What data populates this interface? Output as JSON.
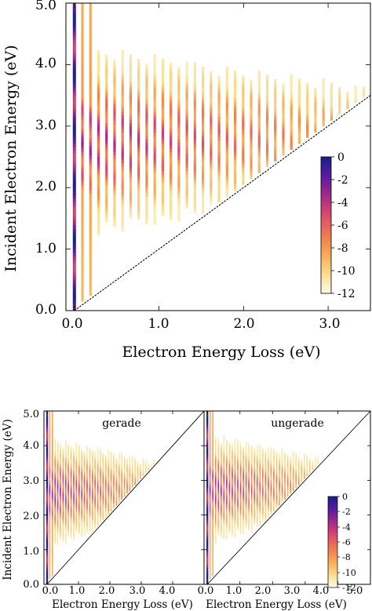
{
  "chart_data": [
    {
      "type": "heatmap",
      "title": "",
      "xlabel": "Electron Energy Loss (eV)",
      "ylabel": "Incident Electron Energy (eV)",
      "xlim": [
        -0.1,
        3.5
      ],
      "ylim": [
        0.0,
        5.0
      ],
      "x_ticks": [
        "0.0",
        "1.0",
        "2.0",
        "3.0"
      ],
      "x_tick_values": [
        0,
        1,
        2,
        3
      ],
      "y_ticks": [
        "0.0",
        "1.0",
        "2.0",
        "3.0",
        "4.0",
        "5.0"
      ],
      "y_tick_values": [
        0,
        1,
        2,
        3,
        4,
        5
      ],
      "threshold_line": "y = x",
      "band_center_energy": 2.7,
      "line_spacing": 0.095,
      "colorbar": {
        "range": [
          -12,
          0
        ],
        "ticks": [
          "0",
          "-2",
          "-4",
          "-6",
          "-8",
          "-10",
          "-12"
        ],
        "tick_values": [
          0,
          -2,
          -4,
          -6,
          -8,
          -10,
          -12
        ],
        "colors": [
          "#fdfbe8",
          "#f9dc8c",
          "#f6a957",
          "#ee7a4f",
          "#dc4a6c",
          "#a42a8a",
          "#5a1ca0",
          "#1a1f8c"
        ]
      }
    },
    {
      "type": "heatmap",
      "title": "gerade",
      "xlabel": "Electron Energy Loss (eV)",
      "ylabel": "Incident Electron Energy (eV)",
      "xlim": [
        -0.1,
        5.0
      ],
      "ylim": [
        0.0,
        5.0
      ],
      "x_ticks": [
        "0.0",
        "1.0",
        "2.0",
        "3.0",
        "4.0",
        "5.0"
      ],
      "x_tick_values": [
        0,
        1,
        2,
        3,
        4,
        5
      ],
      "y_ticks": [
        "0.0",
        "1.0",
        "2.0",
        "3.0",
        "4.0",
        "5.0"
      ],
      "y_tick_values": [
        0,
        1,
        2,
        3,
        4,
        5
      ],
      "threshold_line": "y = x",
      "band_center_energy": 2.6,
      "line_spacing": 0.085
    },
    {
      "type": "heatmap",
      "title": "ungerade",
      "xlabel": "Electron Energy Loss (eV)",
      "ylabel": "",
      "xlim": [
        -0.1,
        5.0
      ],
      "ylim": [
        0.0,
        5.0
      ],
      "x_ticks": [
        "0.0",
        "1.0",
        "2.0",
        "3.0",
        "4.0",
        "5.0"
      ],
      "x_tick_values": [
        0,
        1,
        2,
        3,
        4,
        5
      ],
      "threshold_line": "y = x",
      "band_center_energy": 2.7,
      "line_spacing": 0.085,
      "colorbar": {
        "range": [
          -12,
          0
        ],
        "ticks": [
          "0",
          "-2",
          "-4",
          "-6",
          "-8",
          "-10",
          "-12"
        ],
        "tick_values": [
          0,
          -2,
          -4,
          -6,
          -8,
          -10,
          -12
        ]
      }
    }
  ]
}
